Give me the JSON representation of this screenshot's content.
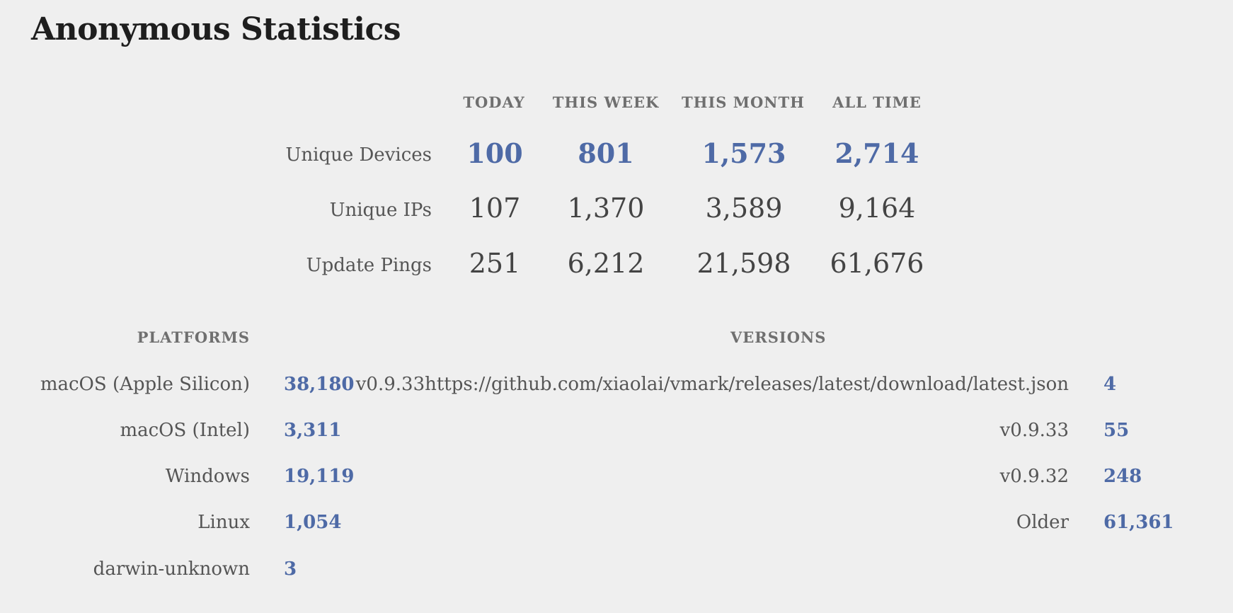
{
  "title": "Anonymous Statistics",
  "summary": {
    "columns": [
      "TODAY",
      "THIS WEEK",
      "THIS MONTH",
      "ALL TIME"
    ],
    "rows": [
      {
        "label": "Unique Devices",
        "values": [
          "100",
          "801",
          "1,573",
          "2,714"
        ],
        "highlight": true
      },
      {
        "label": "Unique IPs",
        "values": [
          "107",
          "1,370",
          "3,589",
          "9,164"
        ],
        "highlight": false
      },
      {
        "label": "Update Pings",
        "values": [
          "251",
          "6,212",
          "21,598",
          "61,676"
        ],
        "highlight": false
      }
    ]
  },
  "platforms": {
    "header": "PLATFORMS",
    "items": [
      {
        "name": "macOS (Apple Silicon)",
        "count": "38,180"
      },
      {
        "name": "macOS (Intel)",
        "count": "3,311"
      },
      {
        "name": "Windows",
        "count": "19,119"
      },
      {
        "name": "Linux",
        "count": "1,054"
      },
      {
        "name": "darwin-unknown",
        "count": "3"
      }
    ]
  },
  "versions": {
    "header": "VERSIONS",
    "items": [
      {
        "name": "v0.9.33https://github.com/xiaolai/vmark/releases/latest/download/latest.json",
        "count": "4"
      },
      {
        "name": "v0.9.33",
        "count": "55"
      },
      {
        "name": "v0.9.32",
        "count": "248"
      },
      {
        "name": "Older",
        "count": "61,361"
      }
    ]
  },
  "colors": {
    "background": "#efefef",
    "title": "#1e1e1e",
    "accent": "#4e6aa6",
    "text": "#444444",
    "muted": "#6f6f6f"
  }
}
